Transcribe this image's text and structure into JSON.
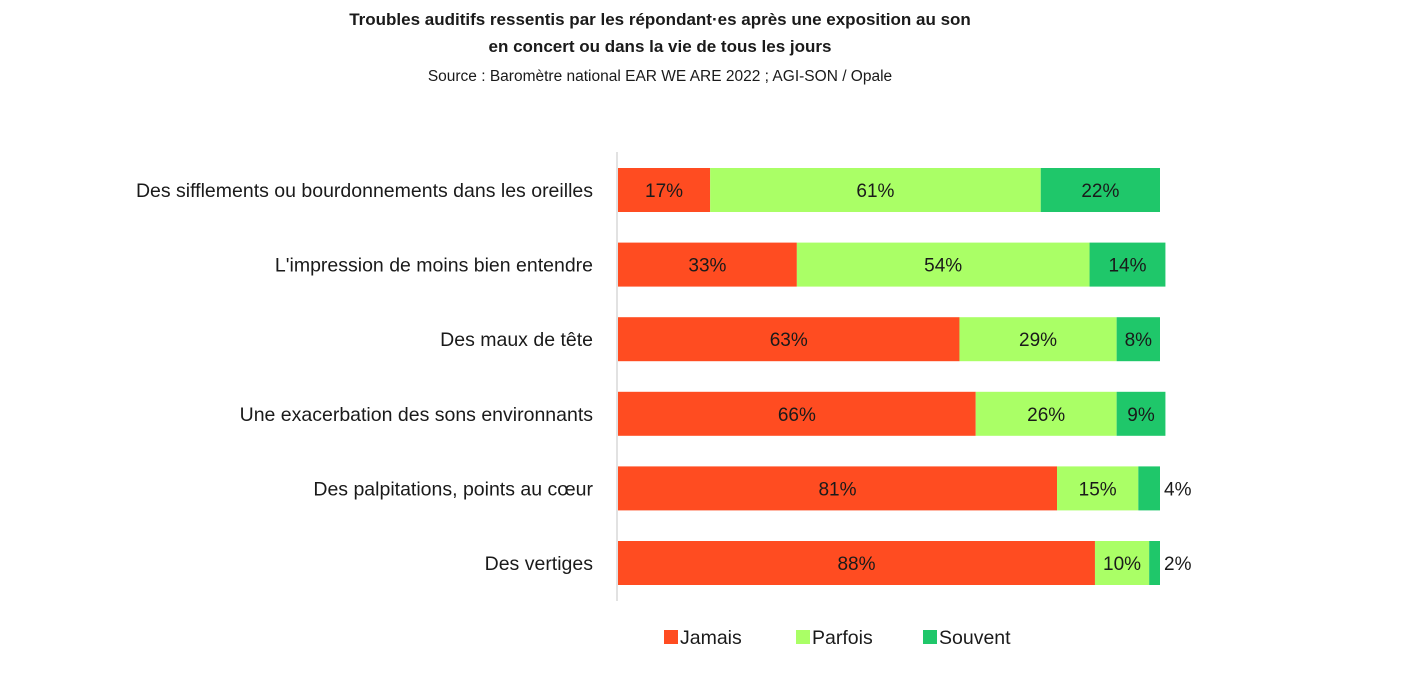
{
  "chart_data": {
    "type": "bar",
    "orientation": "horizontal",
    "stacked": true,
    "title_line1": "Troubles auditifs ressentis par les répondant·es après une exposition au son",
    "title_line2": "en concert ou dans la vie de tous les jours",
    "subtitle": "Source : Baromètre national EAR WE ARE 2022 ; AGI-SON / Opale",
    "categories": [
      "Des sifflements ou bourdonnements dans les oreilles",
      "L'impression de moins bien entendre",
      "Des maux de tête",
      "Une exacerbation des sons environnants",
      "Des palpitations, points au cœur",
      "Des vertiges"
    ],
    "series": [
      {
        "name": "Jamais",
        "color": "#FF4C21",
        "values": [
          17,
          33,
          63,
          66,
          81,
          88
        ],
        "labels": [
          "17%",
          "33%",
          "63%",
          "66%",
          "81%",
          "88%"
        ]
      },
      {
        "name": "Parfois",
        "color": "#AAFF66",
        "values": [
          61,
          54,
          29,
          26,
          15,
          10
        ],
        "labels": [
          "61%",
          "54%",
          "29%",
          "26%",
          "15%",
          "10%"
        ]
      },
      {
        "name": "Souvent",
        "color": "#1FC76A",
        "values": [
          22,
          14,
          8,
          9,
          4,
          2
        ],
        "labels": [
          "22%",
          "14%",
          "8%",
          "9%",
          "4%",
          "2%"
        ]
      }
    ],
    "xlim": [
      0,
      100
    ],
    "legend_position": "bottom",
    "grid": false
  }
}
